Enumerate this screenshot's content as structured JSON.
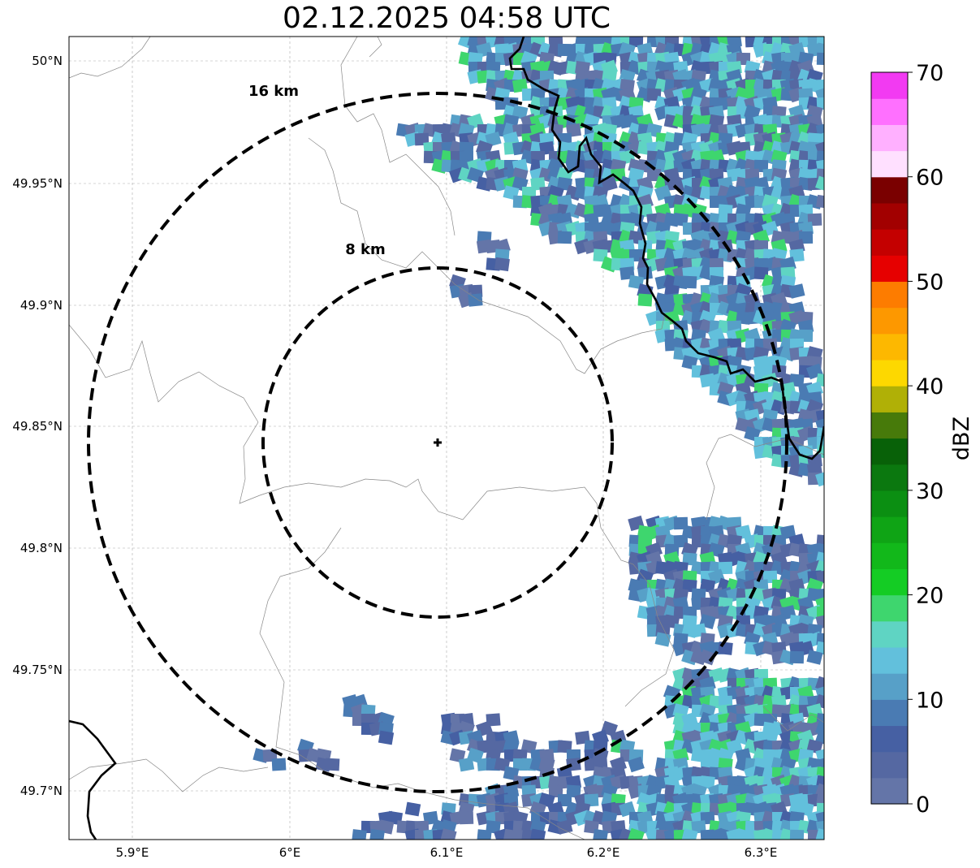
{
  "title": "02.12.2025 04:58 UTC",
  "lon_labels": [
    "5.9°E",
    "6°E",
    "6.1°E",
    "6.2°E",
    "6.3°E"
  ],
  "lat_labels": [
    "50°N",
    "49.95°N",
    "49.9°N",
    "49.85°N",
    "49.8°N",
    "49.75°N",
    "49.7°N"
  ],
  "rings": [
    {
      "label": "16 km",
      "radius_km": 16
    },
    {
      "label": "8 km",
      "radius_km": 8
    }
  ],
  "colorbar": {
    "label": "dBZ",
    "ticks": [
      "0",
      "10",
      "20",
      "30",
      "40",
      "50",
      "60",
      "70"
    ],
    "min": 0,
    "max": 70,
    "step": 2.5,
    "colors": [
      "#6475a8",
      "#5568a2",
      "#4660a3",
      "#4a7bb3",
      "#57a0c8",
      "#62c0dc",
      "#5fd4c3",
      "#3ed66e",
      "#14cc24",
      "#12b81a",
      "#0fa415",
      "#0b8f12",
      "#0b780f",
      "#086108",
      "#477a0a",
      "#b0b006",
      "#fdd800",
      "#fdb800",
      "#fd9800",
      "#fd7c00",
      "#e60000",
      "#c40000",
      "#a20000",
      "#7a0000",
      "#ffe0ff",
      "#ffb0ff",
      "#ff70ff",
      "#f23af2"
    ]
  },
  "radar_site": {
    "lon": 6.095,
    "lat": 49.843
  }
}
